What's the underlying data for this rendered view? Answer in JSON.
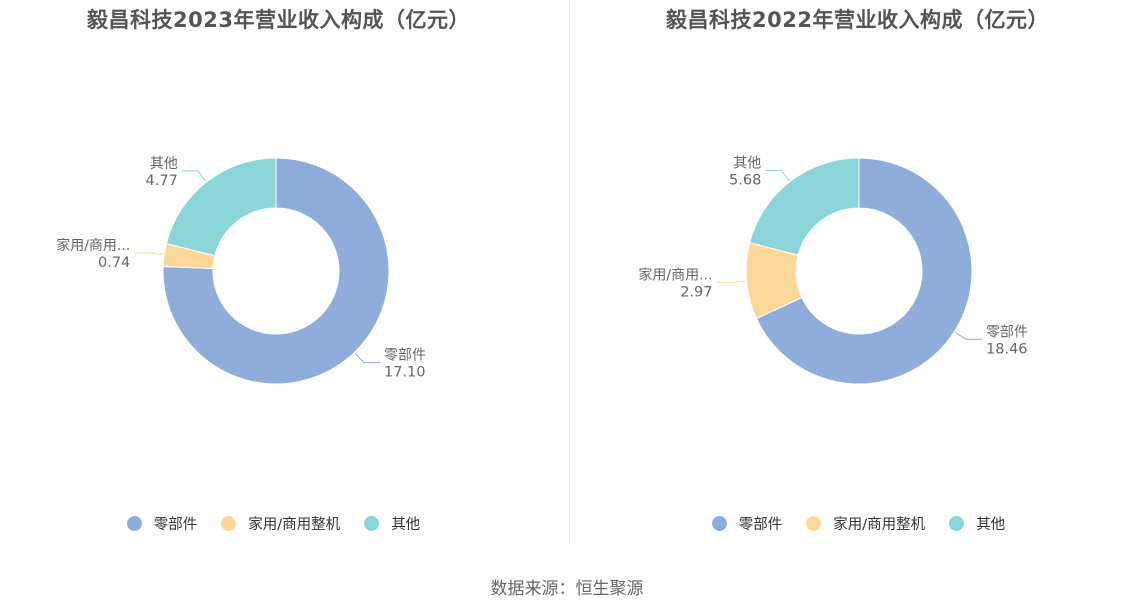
{
  "colors": {
    "parts": "#8FADDB",
    "appliance": "#FCD99A",
    "other": "#8AD5D8"
  },
  "source": "数据来源：恒生聚源",
  "charts": [
    {
      "title": "毅昌科技2023年营业收入构成（亿元）",
      "legend": [
        "零部件",
        "家用/商用整机",
        "其他"
      ],
      "labels": [
        {
          "name": "零部件",
          "value": "17.10"
        },
        {
          "name": "家用/商用...",
          "value": "0.74"
        },
        {
          "name": "其他",
          "value": "4.77"
        }
      ]
    },
    {
      "title": "毅昌科技2022年营业收入构成（亿元）",
      "legend": [
        "零部件",
        "家用/商用整机",
        "其他"
      ],
      "labels": [
        {
          "name": "零部件",
          "value": "18.46"
        },
        {
          "name": "家用/商用...",
          "value": "2.97"
        },
        {
          "name": "其他",
          "value": "5.68"
        }
      ]
    }
  ],
  "chart_data": [
    {
      "type": "pie",
      "title": "毅昌科技2023年营业收入构成（亿元）",
      "categories": [
        "零部件",
        "家用/商用整机",
        "其他"
      ],
      "values": [
        17.1,
        0.74,
        4.77
      ],
      "legend": "bottom",
      "donut": true
    },
    {
      "type": "pie",
      "title": "毅昌科技2022年营业收入构成（亿元）",
      "categories": [
        "零部件",
        "家用/商用整机",
        "其他"
      ],
      "values": [
        18.46,
        2.97,
        5.68
      ],
      "legend": "bottom",
      "donut": true
    }
  ]
}
